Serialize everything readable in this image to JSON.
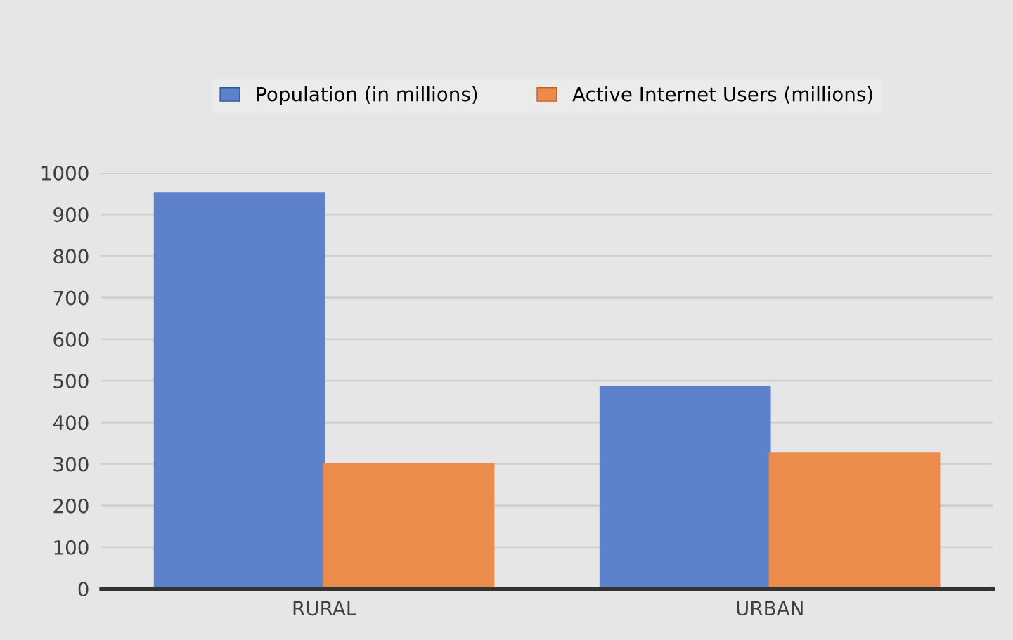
{
  "chart_data": {
    "type": "bar",
    "categories": [
      "RURAL",
      "URBAN"
    ],
    "series": [
      {
        "name": "Population (in millions)",
        "color": "#5b82cb",
        "values": [
          950,
          485
        ]
      },
      {
        "name": "Active Internet Users (millions)",
        "color": "#ec8c4c",
        "values": [
          300,
          325
        ]
      }
    ],
    "ylim": [
      0,
      1000
    ],
    "yticks": [
      0,
      100,
      200,
      300,
      400,
      500,
      600,
      700,
      800,
      900,
      1000
    ],
    "grid": "y",
    "legend": "top"
  }
}
